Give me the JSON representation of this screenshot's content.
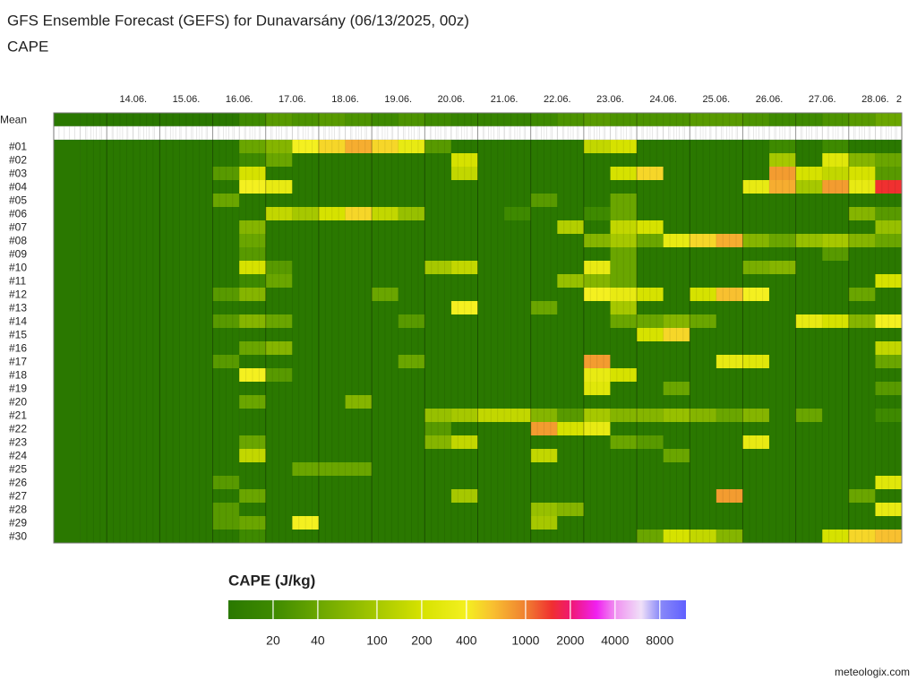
{
  "chart_data": {
    "type": "heatmap",
    "title": "GFS Ensemble Forecast (GEFS) for Dunavarsány (06/13/2025, 00z)",
    "subtitle": "CAPE",
    "credit": "meteologix.com",
    "xlim": [
      0,
      384
    ],
    "xticks": [
      {
        "value": 36,
        "label": "14.06."
      },
      {
        "value": 60,
        "label": "15.06."
      },
      {
        "value": 84,
        "label": "16.06."
      },
      {
        "value": 108,
        "label": "17.06."
      },
      {
        "value": 132,
        "label": "18.06."
      },
      {
        "value": 156,
        "label": "19.06."
      },
      {
        "value": 180,
        "label": "20.06."
      },
      {
        "value": 204,
        "label": "21.06."
      },
      {
        "value": 228,
        "label": "22.06."
      },
      {
        "value": 252,
        "label": "23.06."
      },
      {
        "value": 276,
        "label": "24.06."
      },
      {
        "value": 300,
        "label": "25.06."
      },
      {
        "value": 324,
        "label": "26.06."
      },
      {
        "value": 348,
        "label": "27.06."
      },
      {
        "value": 372,
        "label": "28.06."
      },
      {
        "value": 384,
        "label": "2"
      }
    ],
    "x": [
      0,
      12,
      24,
      36,
      48,
      60,
      72,
      84,
      96,
      108,
      120,
      132,
      144,
      156,
      168,
      180,
      192,
      204,
      216,
      228,
      240,
      252,
      264,
      276,
      288,
      300,
      312,
      324,
      336,
      348,
      360,
      372
    ],
    "series": [
      {
        "name": "Mean",
        "values": [
          5,
          5,
          5,
          5,
          5,
          5,
          5,
          20,
          30,
          25,
          30,
          25,
          20,
          25,
          20,
          15,
          15,
          15,
          20,
          25,
          30,
          25,
          25,
          25,
          30,
          30,
          25,
          20,
          20,
          25,
          30,
          40
        ]
      },
      {
        "name": "#01",
        "values": [
          5,
          5,
          5,
          5,
          5,
          5,
          5,
          40,
          60,
          400,
          500,
          700,
          500,
          300,
          30,
          5,
          5,
          5,
          5,
          5,
          150,
          200,
          5,
          5,
          5,
          5,
          5,
          20,
          5,
          20,
          5,
          5
        ]
      },
      {
        "name": "#02",
        "values": [
          5,
          5,
          5,
          5,
          5,
          5,
          5,
          20,
          40,
          5,
          5,
          5,
          5,
          5,
          5,
          200,
          5,
          5,
          5,
          5,
          5,
          5,
          5,
          5,
          5,
          5,
          5,
          100,
          5,
          250,
          60,
          40
        ]
      },
      {
        "name": "#03",
        "values": [
          5,
          5,
          5,
          5,
          5,
          5,
          30,
          200,
          5,
          5,
          5,
          5,
          5,
          5,
          5,
          150,
          5,
          5,
          5,
          5,
          5,
          200,
          500,
          5,
          5,
          5,
          5,
          800,
          200,
          150,
          200,
          30
        ]
      },
      {
        "name": "#04",
        "values": [
          5,
          5,
          5,
          5,
          5,
          5,
          5,
          400,
          300,
          5,
          5,
          5,
          5,
          5,
          5,
          5,
          5,
          5,
          5,
          5,
          5,
          5,
          5,
          5,
          5,
          5,
          300,
          700,
          100,
          800,
          300,
          1500
        ]
      },
      {
        "name": "#05",
        "values": [
          5,
          5,
          5,
          5,
          5,
          5,
          40,
          5,
          5,
          5,
          5,
          5,
          5,
          5,
          5,
          5,
          5,
          5,
          30,
          5,
          5,
          40,
          5,
          5,
          5,
          5,
          5,
          5,
          5,
          5,
          5,
          5
        ]
      },
      {
        "name": "#06",
        "values": [
          5,
          5,
          5,
          5,
          5,
          5,
          5,
          5,
          150,
          100,
          200,
          500,
          150,
          80,
          5,
          5,
          5,
          20,
          5,
          5,
          20,
          40,
          5,
          5,
          5,
          5,
          5,
          5,
          5,
          5,
          60,
          30
        ]
      },
      {
        "name": "#07",
        "values": [
          5,
          5,
          5,
          5,
          5,
          5,
          5,
          60,
          5,
          5,
          5,
          5,
          5,
          5,
          5,
          5,
          5,
          5,
          5,
          120,
          5,
          150,
          200,
          5,
          5,
          5,
          5,
          5,
          5,
          5,
          5,
          80
        ]
      },
      {
        "name": "#08",
        "values": [
          5,
          5,
          5,
          5,
          5,
          5,
          5,
          40,
          5,
          5,
          5,
          5,
          5,
          5,
          5,
          5,
          5,
          5,
          5,
          5,
          60,
          100,
          40,
          300,
          500,
          700,
          60,
          40,
          80,
          100,
          60,
          40
        ]
      },
      {
        "name": "#09",
        "values": [
          5,
          5,
          5,
          5,
          5,
          5,
          5,
          30,
          5,
          5,
          5,
          5,
          5,
          5,
          5,
          5,
          5,
          5,
          5,
          5,
          5,
          40,
          5,
          5,
          5,
          5,
          5,
          5,
          5,
          30,
          5,
          5
        ]
      },
      {
        "name": "#10",
        "values": [
          5,
          5,
          5,
          5,
          5,
          5,
          5,
          200,
          30,
          5,
          5,
          5,
          5,
          5,
          100,
          150,
          5,
          5,
          5,
          5,
          300,
          40,
          5,
          5,
          5,
          5,
          50,
          60,
          5,
          5,
          5,
          5
        ]
      },
      {
        "name": "#11",
        "values": [
          5,
          5,
          5,
          5,
          5,
          5,
          5,
          20,
          40,
          5,
          5,
          5,
          5,
          5,
          5,
          5,
          5,
          5,
          5,
          80,
          60,
          40,
          5,
          5,
          5,
          5,
          5,
          5,
          5,
          5,
          5,
          200
        ]
      },
      {
        "name": "#12",
        "values": [
          5,
          5,
          5,
          5,
          5,
          5,
          30,
          60,
          5,
          5,
          5,
          5,
          40,
          5,
          5,
          5,
          5,
          5,
          5,
          5,
          400,
          300,
          200,
          5,
          200,
          600,
          400,
          5,
          5,
          5,
          40,
          5
        ]
      },
      {
        "name": "#13",
        "values": [
          5,
          5,
          5,
          5,
          5,
          5,
          5,
          5,
          5,
          5,
          5,
          5,
          5,
          5,
          5,
          400,
          5,
          5,
          40,
          5,
          5,
          100,
          5,
          5,
          5,
          5,
          5,
          5,
          5,
          5,
          5,
          5
        ]
      },
      {
        "name": "#14",
        "values": [
          5,
          5,
          5,
          5,
          5,
          5,
          30,
          60,
          40,
          5,
          5,
          5,
          5,
          30,
          5,
          5,
          5,
          5,
          5,
          5,
          5,
          40,
          40,
          60,
          40,
          5,
          5,
          5,
          300,
          200,
          60,
          400
        ]
      },
      {
        "name": "#15",
        "values": [
          5,
          5,
          5,
          5,
          5,
          5,
          5,
          5,
          5,
          5,
          5,
          5,
          5,
          5,
          5,
          5,
          5,
          5,
          5,
          5,
          5,
          5,
          200,
          500,
          5,
          5,
          5,
          5,
          5,
          5,
          5,
          5
        ]
      },
      {
        "name": "#16",
        "values": [
          5,
          5,
          5,
          5,
          5,
          5,
          5,
          40,
          60,
          5,
          5,
          5,
          5,
          5,
          5,
          5,
          5,
          5,
          5,
          5,
          5,
          5,
          5,
          5,
          5,
          5,
          5,
          5,
          5,
          5,
          5,
          150
        ]
      },
      {
        "name": "#17",
        "values": [
          5,
          5,
          5,
          5,
          5,
          5,
          30,
          5,
          5,
          5,
          5,
          5,
          5,
          40,
          5,
          5,
          5,
          5,
          5,
          5,
          800,
          5,
          5,
          5,
          5,
          300,
          250,
          5,
          5,
          5,
          5,
          40
        ]
      },
      {
        "name": "#18",
        "values": [
          5,
          5,
          5,
          5,
          5,
          5,
          5,
          400,
          30,
          5,
          5,
          5,
          5,
          5,
          5,
          5,
          5,
          5,
          5,
          5,
          300,
          200,
          5,
          5,
          5,
          5,
          5,
          5,
          5,
          5,
          5,
          5
        ]
      },
      {
        "name": "#19",
        "values": [
          5,
          5,
          5,
          5,
          5,
          5,
          5,
          5,
          5,
          5,
          5,
          5,
          5,
          5,
          5,
          5,
          5,
          5,
          5,
          5,
          250,
          5,
          5,
          40,
          5,
          5,
          5,
          5,
          5,
          5,
          5,
          30
        ]
      },
      {
        "name": "#20",
        "values": [
          5,
          5,
          5,
          5,
          5,
          5,
          5,
          40,
          5,
          5,
          5,
          60,
          5,
          5,
          5,
          5,
          5,
          5,
          5,
          5,
          5,
          5,
          5,
          5,
          5,
          5,
          5,
          5,
          5,
          5,
          5,
          5
        ]
      },
      {
        "name": "#21",
        "values": [
          5,
          5,
          5,
          5,
          5,
          5,
          5,
          5,
          5,
          5,
          5,
          5,
          5,
          5,
          80,
          100,
          150,
          150,
          60,
          30,
          100,
          60,
          60,
          80,
          60,
          40,
          60,
          5,
          40,
          5,
          5,
          20
        ]
      },
      {
        "name": "#22",
        "values": [
          5,
          5,
          5,
          5,
          5,
          5,
          5,
          5,
          5,
          5,
          5,
          5,
          5,
          5,
          30,
          5,
          5,
          5,
          800,
          200,
          300,
          5,
          5,
          5,
          5,
          5,
          5,
          5,
          5,
          5,
          5,
          5
        ]
      },
      {
        "name": "#23",
        "values": [
          5,
          5,
          5,
          5,
          5,
          5,
          5,
          40,
          5,
          5,
          5,
          5,
          5,
          5,
          60,
          150,
          5,
          5,
          5,
          5,
          5,
          40,
          30,
          5,
          5,
          5,
          300,
          5,
          5,
          5,
          5,
          5
        ]
      },
      {
        "name": "#24",
        "values": [
          5,
          5,
          5,
          5,
          5,
          5,
          5,
          150,
          5,
          5,
          5,
          5,
          5,
          5,
          5,
          5,
          5,
          5,
          150,
          5,
          5,
          5,
          5,
          40,
          5,
          5,
          5,
          5,
          5,
          5,
          5,
          5
        ]
      },
      {
        "name": "#25",
        "values": [
          5,
          5,
          5,
          5,
          5,
          5,
          5,
          5,
          5,
          40,
          40,
          40,
          5,
          5,
          5,
          5,
          5,
          5,
          5,
          5,
          5,
          5,
          5,
          5,
          5,
          5,
          5,
          5,
          5,
          5,
          5,
          5
        ]
      },
      {
        "name": "#26",
        "values": [
          5,
          5,
          5,
          5,
          5,
          5,
          30,
          5,
          5,
          5,
          5,
          5,
          5,
          5,
          5,
          5,
          5,
          5,
          5,
          5,
          5,
          5,
          5,
          5,
          5,
          5,
          5,
          5,
          5,
          5,
          5,
          250
        ]
      },
      {
        "name": "#27",
        "values": [
          5,
          5,
          5,
          5,
          5,
          5,
          5,
          40,
          5,
          5,
          5,
          5,
          5,
          5,
          5,
          100,
          5,
          5,
          5,
          5,
          5,
          5,
          5,
          5,
          5,
          800,
          5,
          5,
          5,
          5,
          40,
          5
        ]
      },
      {
        "name": "#28",
        "values": [
          5,
          5,
          5,
          5,
          5,
          5,
          30,
          5,
          5,
          5,
          5,
          5,
          5,
          5,
          5,
          5,
          5,
          5,
          80,
          60,
          5,
          5,
          5,
          5,
          5,
          5,
          5,
          5,
          5,
          5,
          5,
          300
        ]
      },
      {
        "name": "#29",
        "values": [
          5,
          5,
          5,
          5,
          5,
          5,
          30,
          40,
          5,
          400,
          5,
          5,
          5,
          5,
          5,
          5,
          5,
          5,
          100,
          5,
          5,
          5,
          5,
          5,
          5,
          5,
          5,
          5,
          5,
          5,
          5,
          5
        ]
      },
      {
        "name": "#30",
        "values": [
          5,
          5,
          5,
          5,
          5,
          5,
          5,
          20,
          5,
          5,
          5,
          5,
          5,
          5,
          5,
          5,
          5,
          5,
          5,
          5,
          5,
          5,
          40,
          200,
          150,
          60,
          5,
          5,
          5,
          200,
          500,
          600
        ]
      }
    ],
    "colorbar": {
      "title": "CAPE (J/kg)",
      "log": true,
      "lim": [
        10,
        12000
      ],
      "ticks": [
        20,
        40,
        100,
        200,
        400,
        1000,
        2000,
        4000,
        8000
      ],
      "stops": [
        {
          "value": 10,
          "color": "#2a7800"
        },
        {
          "value": 20,
          "color": "#3e8a00"
        },
        {
          "value": 40,
          "color": "#6aa600"
        },
        {
          "value": 100,
          "color": "#a6c800"
        },
        {
          "value": 200,
          "color": "#d6e200"
        },
        {
          "value": 400,
          "color": "#f4f020"
        },
        {
          "value": 600,
          "color": "#f8c030"
        },
        {
          "value": 1000,
          "color": "#f08030"
        },
        {
          "value": 1500,
          "color": "#f03030"
        },
        {
          "value": 2000,
          "color": "#f01870"
        },
        {
          "value": 3000,
          "color": "#f020f0"
        },
        {
          "value": 4000,
          "color": "#f090f0"
        },
        {
          "value": 6000,
          "color": "#f0e0f8"
        },
        {
          "value": 8000,
          "color": "#8a8af8"
        },
        {
          "value": 12000,
          "color": "#6060ff"
        }
      ]
    }
  }
}
